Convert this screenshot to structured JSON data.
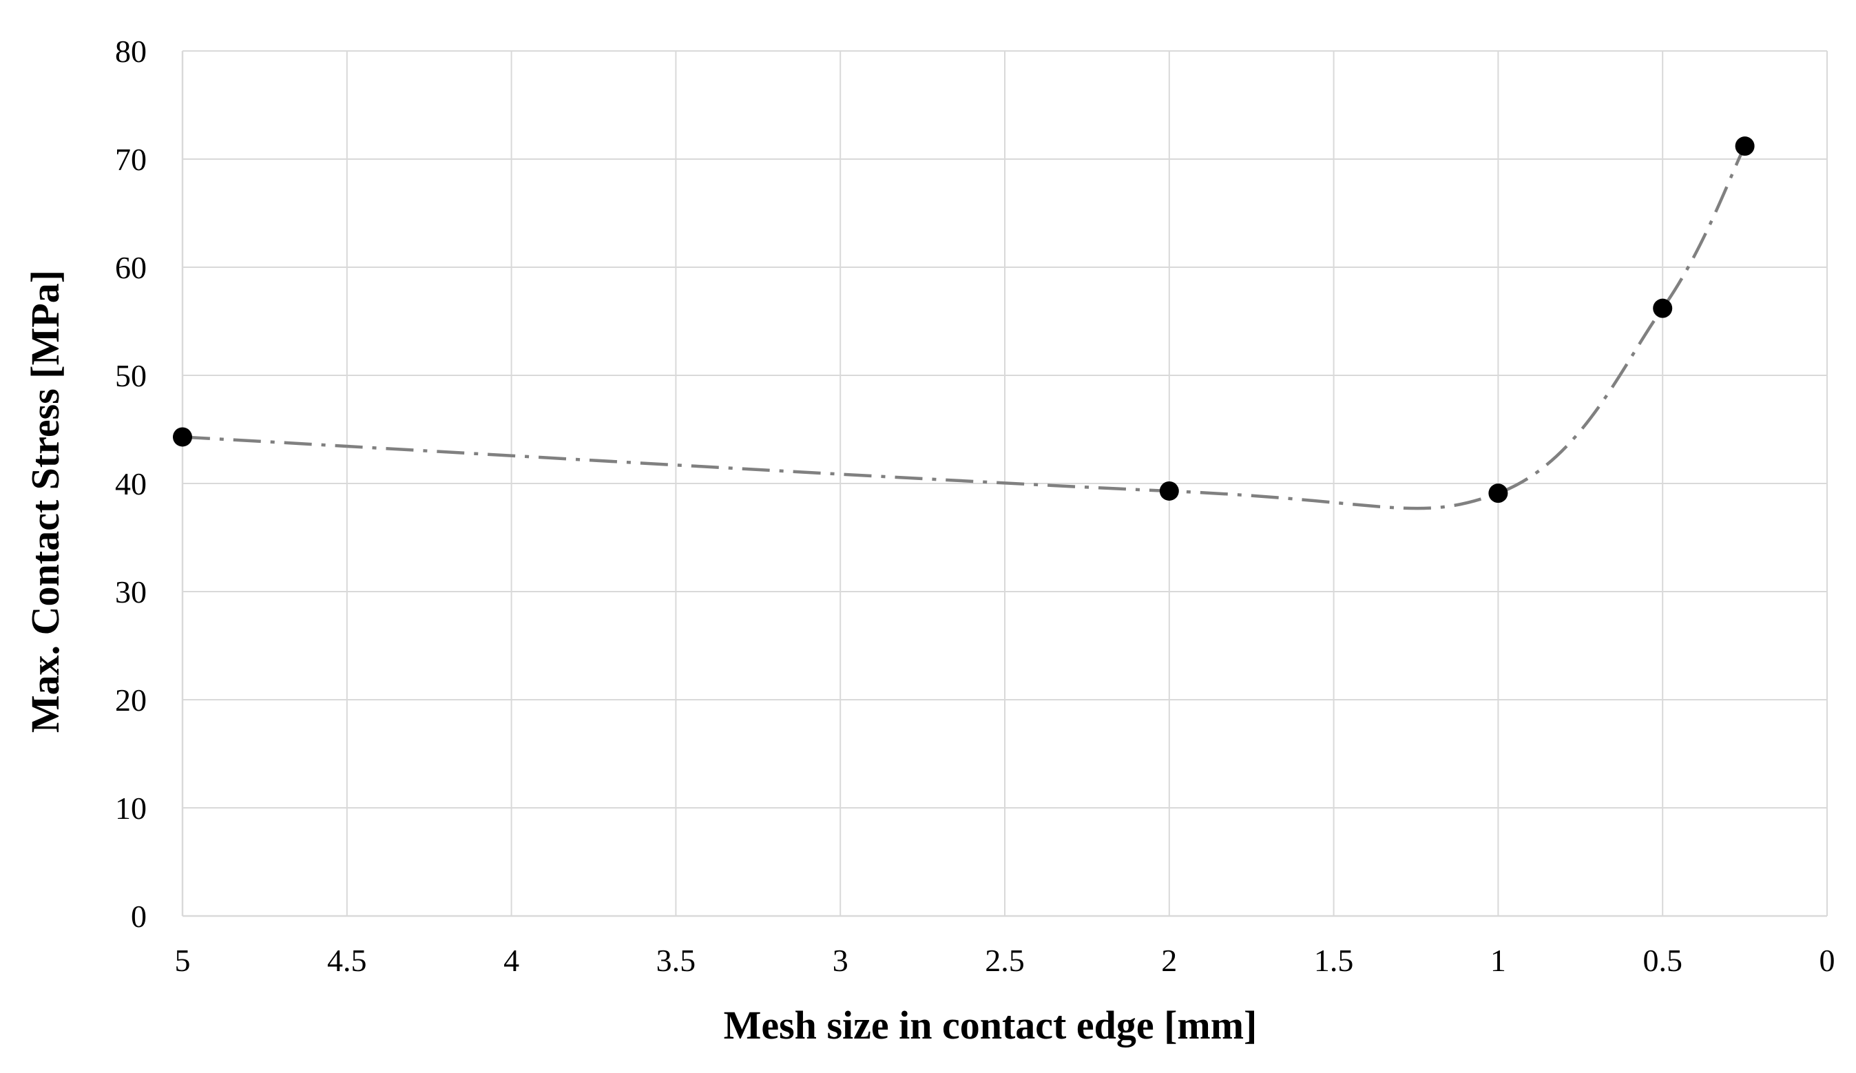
{
  "chart_data": {
    "type": "line",
    "xlabel": "Mesh size in contact edge [mm]",
    "ylabel": "Max. Contact Stress [MPa]",
    "x_reversed": true,
    "xlim": [
      0,
      5
    ],
    "ylim": [
      0,
      80
    ],
    "xticks": [
      5,
      4.5,
      4,
      3.5,
      3,
      2.5,
      2,
      1.5,
      1,
      0.5,
      0
    ],
    "xtick_labels": [
      "5",
      "4.5",
      "4",
      "3.5",
      "3",
      "2.5",
      "2",
      "1.5",
      "1",
      "0.5",
      "0"
    ],
    "yticks": [
      0,
      10,
      20,
      30,
      40,
      50,
      60,
      70,
      80
    ],
    "ytick_labels": [
      "0",
      "10",
      "20",
      "30",
      "40",
      "50",
      "60",
      "70",
      "80"
    ],
    "grid": true,
    "line_style": "dash-dot smoothed",
    "series": [
      {
        "x": [
          5,
          2,
          1,
          0.5,
          0.25
        ],
        "y": [
          44.3,
          39.3,
          39.1,
          56.2,
          71.2
        ],
        "marker": "circle",
        "line_color": "#808080",
        "marker_color": "#000000"
      }
    ],
    "colors": {
      "grid": "#d9d9d9",
      "line": "#808080",
      "marker": "#000000"
    }
  }
}
